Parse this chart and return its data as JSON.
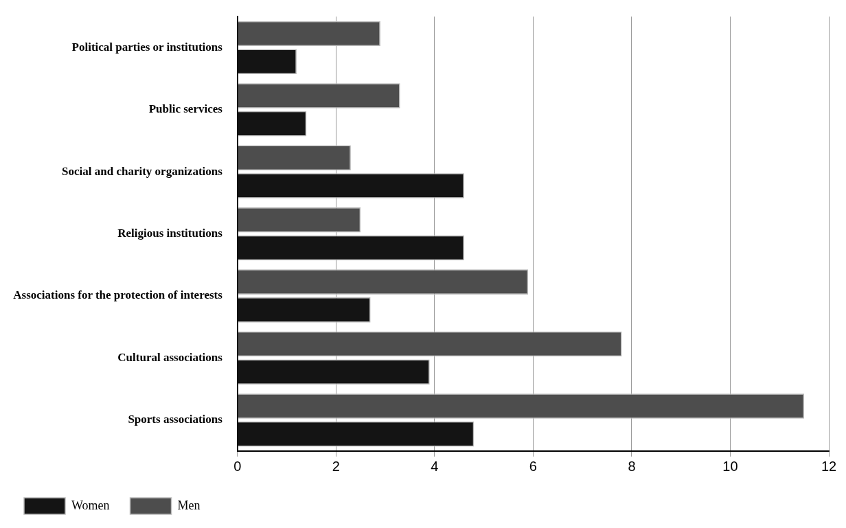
{
  "chart_data": {
    "type": "bar",
    "orientation": "horizontal",
    "categories": [
      "Political parties or institutions",
      "Public services",
      "Social and charity organizations",
      "Religious institutions",
      "Associations for the protection of interests",
      "Cultural associations",
      "Sports associations"
    ],
    "series": [
      {
        "name": "Men",
        "color": "#4d4d4d",
        "values": [
          2.9,
          3.3,
          2.3,
          2.5,
          5.9,
          7.8,
          11.5
        ]
      },
      {
        "name": "Women",
        "color": "#141414",
        "values": [
          1.2,
          1.4,
          4.6,
          4.6,
          2.7,
          3.9,
          4.8
        ]
      }
    ],
    "xlim": [
      0,
      12
    ],
    "xticks": [
      0,
      2,
      4,
      6,
      8,
      10,
      12
    ],
    "grid": "x",
    "legend": "bottom left"
  }
}
